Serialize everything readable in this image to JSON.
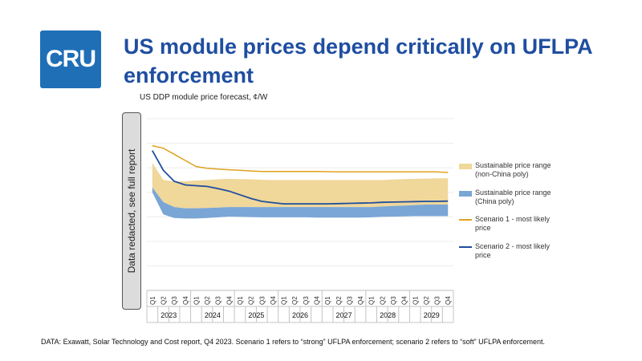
{
  "logo": {
    "text": "CRU"
  },
  "header": {
    "title": "US module prices depend critically on UFLPA enforcement"
  },
  "redacted_label": "Data redacted, see full report",
  "footnote": "DATA: Exawatt, Solar Technology and Cost report, Q4 2023. Scenario 1 refers to “strong” UFLPA enforcement; scenario 2 refers to “soft” UFLPA enforcement.",
  "colors": {
    "brand": "#1f6fb7",
    "title": "#1f4ea1",
    "sustainable_non_china": "#f0d79a",
    "sustainable_china": "#7aa6d6",
    "scenario1": "#e0a21e",
    "scenario2": "#1f4e9e"
  },
  "chart_data": {
    "type": "area",
    "title": "US DDP module price forecast, ¢/W",
    "xlabel": "",
    "ylabel": "",
    "ylim": [
      0,
      70
    ],
    "grid": true,
    "quarters": [
      "Q1",
      "Q2",
      "Q3",
      "Q4",
      "Q1",
      "Q2",
      "Q3",
      "Q4",
      "Q1",
      "Q2",
      "Q3",
      "Q4",
      "Q1",
      "Q2",
      "Q3",
      "Q4",
      "Q1",
      "Q2",
      "Q3",
      "Q4",
      "Q1",
      "Q2",
      "Q3",
      "Q4",
      "Q1",
      "Q2",
      "Q3",
      "Q4"
    ],
    "years": [
      "2023",
      "2024",
      "2025",
      "2026",
      "2027",
      "2028",
      "2029"
    ],
    "series": [
      {
        "name": "Sustainable price range (non-China poly)",
        "kind": "range",
        "low": [
          42,
          36,
          34,
          33.5,
          33.5,
          33.6,
          33.8,
          34,
          34,
          34,
          34,
          34,
          34,
          34,
          34,
          34,
          34,
          34,
          34,
          34,
          34,
          34.2,
          34.4,
          34.6,
          34.8,
          35,
          35,
          35
        ],
        "high": [
          52,
          45,
          44.5,
          44.5,
          44.8,
          45,
          45.3,
          45.5,
          45.4,
          45.3,
          45.1,
          45,
          45,
          45,
          45,
          45,
          45,
          45,
          45,
          45,
          45,
          45,
          45.2,
          45.4,
          45.5,
          45.6,
          45.7,
          45.7
        ]
      },
      {
        "name": "Sustainable price range (China poly)",
        "kind": "range",
        "low": [
          40,
          31,
          29.5,
          29.3,
          29.3,
          29.5,
          29.8,
          30.1,
          30,
          29.9,
          29.8,
          29.8,
          29.8,
          29.8,
          29.8,
          29.7,
          29.7,
          29.7,
          29.7,
          29.7,
          29.8,
          30,
          30.1,
          30.2,
          30.3,
          30.3,
          30.3,
          30.3
        ],
        "high": [
          42,
          36,
          34,
          33.5,
          33.5,
          33.6,
          33.8,
          34,
          34,
          34,
          34,
          34,
          34,
          34,
          34,
          34,
          34,
          34,
          34,
          34,
          34,
          34.2,
          34.4,
          34.6,
          34.8,
          35,
          35,
          35
        ]
      },
      {
        "name": "Scenario 1 - most likely price",
        "kind": "line",
        "values": [
          59,
          58,
          55.5,
          53,
          50.5,
          49.8,
          49.5,
          49.2,
          49,
          48.7,
          48.5,
          48.5,
          48.5,
          48.5,
          48.5,
          48.5,
          48.4,
          48.3,
          48.3,
          48.3,
          48.3,
          48.3,
          48.3,
          48.3,
          48.3,
          48.3,
          48.3,
          48.1
        ]
      },
      {
        "name": "Scenario 2 - most likely price",
        "kind": "line",
        "values": [
          57,
          49,
          44.5,
          43,
          42.7,
          42.4,
          41.5,
          40.5,
          39,
          37.5,
          36.3,
          35.8,
          35.3,
          35.3,
          35.3,
          35.3,
          35.3,
          35.4,
          35.5,
          35.6,
          35.7,
          35.9,
          36,
          36.1,
          36.2,
          36.3,
          36.3,
          36.4
        ]
      }
    ],
    "legend": {
      "position": "right",
      "items": [
        {
          "line1": "Sustainable price range",
          "line2": "(non-China poly)"
        },
        {
          "line1": "Sustainable price range",
          "line2": "(China poly)"
        },
        {
          "line1": "Scenario 1 - most likely",
          "line2": "price"
        },
        {
          "line1": "Scenario 2 - most likely",
          "line2": "price"
        }
      ]
    }
  }
}
